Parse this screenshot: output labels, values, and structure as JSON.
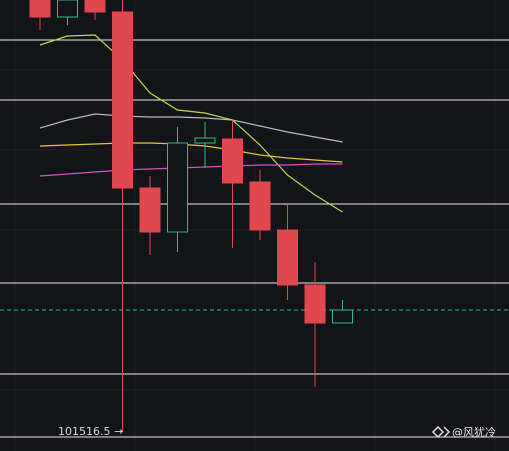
{
  "chart_data": {
    "type": "candlestick",
    "ylim": [
      101136.5,
      110156.5
    ],
    "up_color": "#2ebd85",
    "down_color": "#e0474f",
    "open": [
      110156.5,
      109816.5,
      110156.5,
      109916.5,
      106396.5,
      105516.5,
      107296.5,
      107376.5,
      106516.5,
      105556.5,
      104456.5,
      103696.5
    ],
    "high": [
      110156.5,
      110156.5,
      110156.5,
      110156.5,
      106636.5,
      107616.5,
      107716.5,
      107756.5,
      106756.5,
      106056.5,
      104916.5,
      104156.5
    ],
    "low": [
      109556.5,
      109656.5,
      109756.5,
      101516.5,
      105056.5,
      105116.5,
      106796.5,
      105196.5,
      105356.5,
      104156.5,
      102416.5,
      103696.5
    ],
    "close": [
      109816.5,
      110156.5,
      109916.5,
      106396.5,
      105516.5,
      107296.5,
      107396.5,
      106496.5,
      105556.5,
      104456.5,
      103696.5,
      103956.5
    ],
    "series": [
      {
        "color": "#b5d94a",
        "values": [
          109256.5,
          109436.5,
          109456.5,
          108956.5,
          108296.5,
          107956.5,
          107896.5,
          107756.5,
          107256.5,
          106656.5,
          106256.5,
          105916.5
        ]
      },
      {
        "color": "#b8b8b8",
        "values": [
          107596.5,
          107756.5,
          107876.5,
          107836.5,
          107816.5,
          107816.5,
          107796.5,
          107756.5,
          107636.5,
          107516.5,
          107416.5,
          107316.5
        ]
      },
      {
        "color": "#e3c53a",
        "values": [
          107236.5,
          107256.5,
          107276.5,
          107296.5,
          107296.5,
          107276.5,
          107236.5,
          107156.5,
          107056.5,
          106996.5,
          106956.5,
          106916.5
        ]
      },
      {
        "color": "#d94fc4",
        "values": [
          106636.5,
          106676.5,
          106716.5,
          106756.5,
          106776.5,
          106796.5,
          106816.5,
          106836.5,
          106856.5,
          106856.5,
          106876.5,
          106876.5
        ]
      }
    ],
    "levels": [
      109356.5,
      108156.5,
      106076.5,
      104496.5,
      102676.5,
      101416.5
    ],
    "last_price": 103956.5,
    "low_label": "101516.5 →",
    "watermark": "@风犹冷"
  }
}
